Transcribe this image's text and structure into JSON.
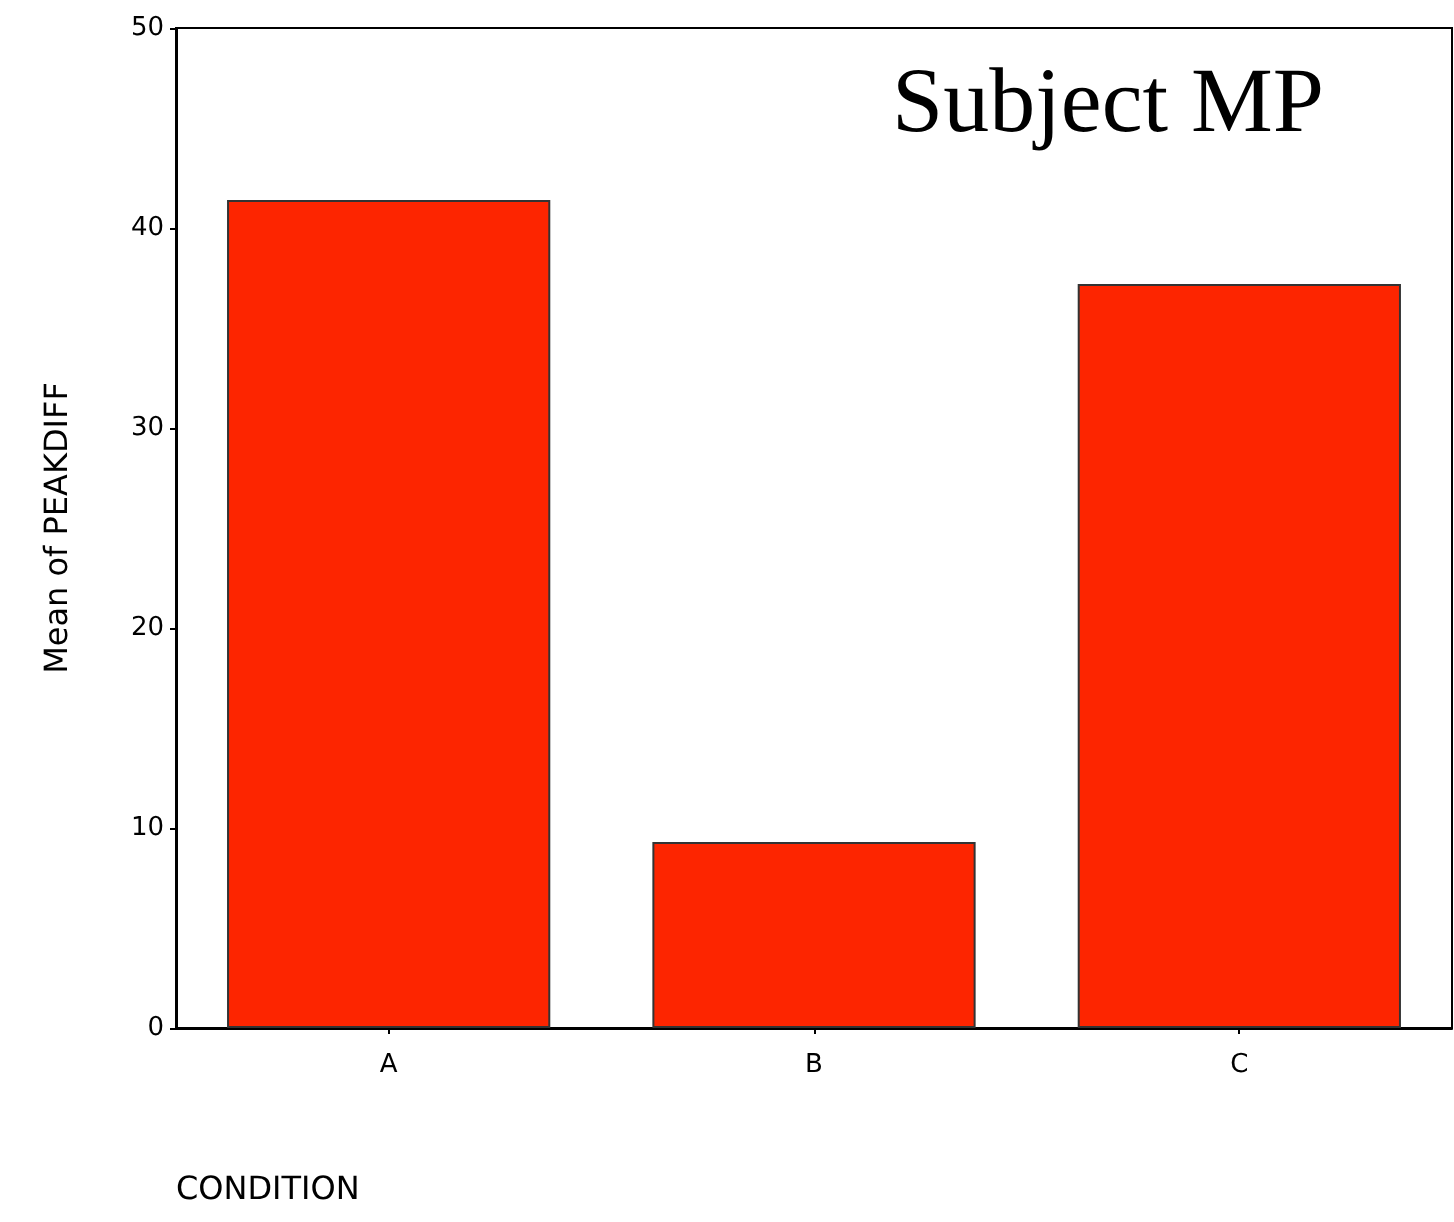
{
  "chart_data": {
    "type": "bar",
    "title": "Subject MP",
    "xlabel": "CONDITION",
    "ylabel": "Mean of PEAKDIFF",
    "categories": [
      "A",
      "B",
      "C"
    ],
    "values": [
      41.4,
      9.3,
      37.2
    ],
    "color": "#fd2500",
    "ylim": [
      0,
      50
    ],
    "yticks": [
      0,
      10,
      20,
      30,
      40,
      50
    ]
  }
}
